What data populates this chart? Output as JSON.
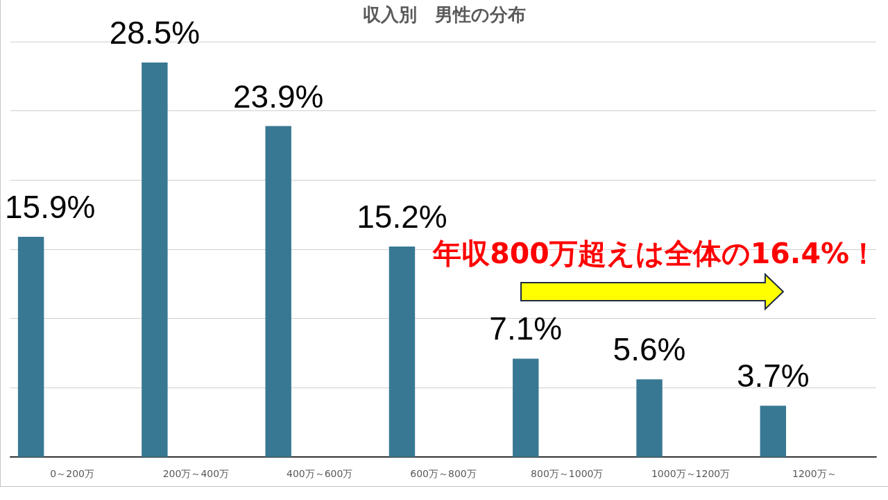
{
  "chart_data": {
    "type": "bar",
    "title": "収入別　男性の分布",
    "categories": [
      "0～200万",
      "200万～400万",
      "400万～600万",
      "600万～800万",
      "800万～1000万",
      "1000万～1200万",
      "1200万～"
    ],
    "values": [
      15.9,
      28.5,
      23.9,
      15.2,
      7.1,
      5.6,
      3.7
    ],
    "value_labels": [
      "15.9%",
      "28.5%",
      "23.9%",
      "15.2%",
      "7.1%",
      "5.6%",
      "3.7%"
    ],
    "color": "#387893",
    "ylim": [
      0,
      30
    ],
    "yticks": [
      {
        "value": 0,
        "label": null
      },
      {
        "value": 5,
        "label": null
      },
      {
        "value": 10,
        "label": null
      },
      {
        "value": 15,
        "label": null
      },
      {
        "value": 20,
        "label": null
      },
      {
        "value": 25,
        "label": null
      },
      {
        "value": 30,
        "label": null
      }
    ],
    "grid": "y",
    "tick_labels": "x",
    "annotations": [
      "年収800万超えは全体の16.4%！"
    ]
  }
}
